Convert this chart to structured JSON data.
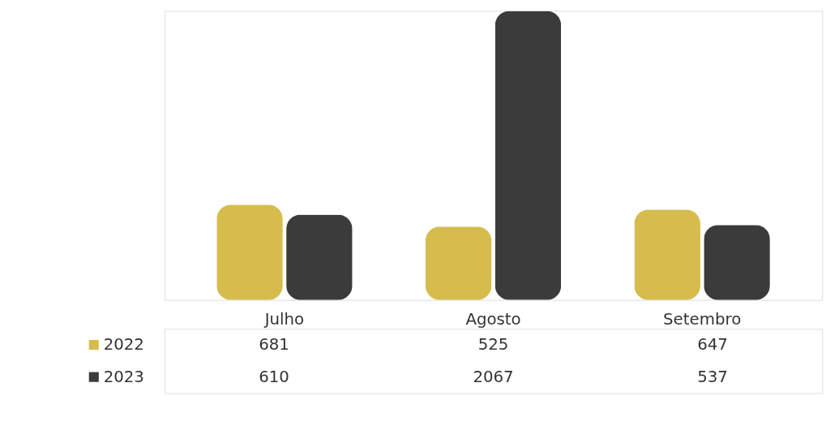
{
  "chart_data": {
    "type": "bar",
    "categories": [
      "Julho",
      "Agosto",
      "Setembro"
    ],
    "series": [
      {
        "name": "2022",
        "color": "#d6bc4c",
        "values": [
          681,
          525,
          647
        ]
      },
      {
        "name": "2023",
        "color": "#3b3b3b",
        "values": [
          610,
          2067,
          537
        ]
      }
    ],
    "data_labels": true,
    "legend": "bottom left",
    "grid": false
  }
}
